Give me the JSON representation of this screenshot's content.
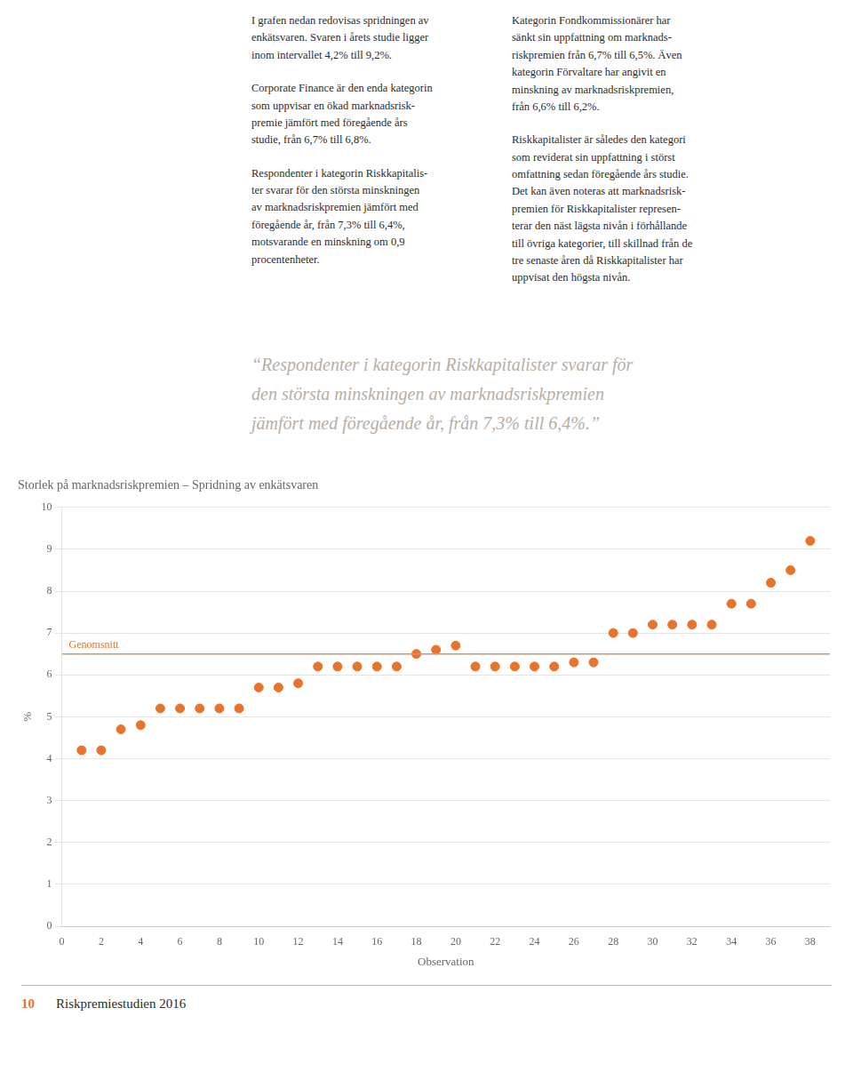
{
  "chart_data": {
    "type": "scatter",
    "title": "Storlek på marknadsriskpremien – Spridning av enkätsvaren",
    "xlabel": "Observation",
    "ylabel": "%",
    "x": [
      1,
      2,
      3,
      4,
      5,
      6,
      7,
      8,
      9,
      10,
      11,
      12,
      13,
      14,
      15,
      16,
      17,
      18,
      19,
      20,
      21,
      22,
      23,
      24,
      25,
      26,
      27,
      28,
      29,
      30,
      31,
      32,
      33,
      34,
      35,
      36,
      37,
      38
    ],
    "values": [
      4.2,
      4.2,
      4.7,
      4.8,
      5.2,
      5.2,
      5.2,
      5.2,
      5.2,
      5.7,
      5.7,
      5.8,
      6.2,
      6.2,
      6.2,
      6.2,
      6.2,
      6.5,
      6.6,
      6.7,
      6.2,
      6.2,
      6.2,
      6.2,
      6.2,
      6.3,
      6.3,
      7.0,
      7.0,
      7.2,
      7.2,
      7.2,
      7.2,
      7.7,
      7.7,
      8.2,
      8.5,
      9.2
    ],
    "color": "#E8732A",
    "xlim": [
      0,
      39
    ],
    "ylim": [
      0,
      10
    ],
    "xticks": [
      0,
      2,
      4,
      6,
      8,
      10,
      12,
      14,
      16,
      18,
      20,
      22,
      24,
      26,
      28,
      30,
      32,
      34,
      36,
      38
    ],
    "yticks": [
      0,
      1,
      2,
      3,
      4,
      5,
      6,
      7,
      8,
      9,
      10
    ],
    "grid": "y",
    "annotations": [
      {
        "type": "hline",
        "y": 6.5,
        "text": "Genomsnitt",
        "color": "#C49A78"
      }
    ]
  },
  "page": {
    "paragraphs_left": [
      "I grafen nedan redovisas spridningen av\nenkätsvaren. Svaren i årets studie ligger\ninom intervallet 4,2% till 9,2%.",
      "Corporate Finance är den enda kategorin\nsom uppvisar en ökad marknadsrisk-\npremie jämfört med föregående års\nstudie, från 6,7% till 6,8%.",
      "Respondenter i kategorin Riskkapitalis-\nter svarar för den största minskningen\nav marknadsriskpremien jämfört med\nföregående år, från 7,3% till 6,4%,\nmotsvarande en minskning om 0,9\nprocentenheter."
    ],
    "paragraphs_right": [
      "Kategorin Fondkommissionärer har\nsänkt sin uppfattning om marknads-\nriskpremien från 6,7% till 6,5%. Även\nkategorin Förvaltare har angivit en\nminskning av marknadsriskpremien,\nfrån 6,6% till 6,2%.",
      "Riskkapitalister är således den kategori\nsom reviderat sin uppfattning i störst\nomfattning sedan föregående års studie.\nDet kan även noteras att marknadsrisk-\npremien för Riskkapitalister represen-\nterar den näst lägsta nivån i förhållande\ntill övriga kategorier, till skillnad från de\ntre senaste åren då Riskkapitalister har\nuppvisat den högsta nivån."
    ],
    "quote": [
      "“Respondenter i kategorin Riskkapitalister svarar för",
      "den största minskningen av marknadsriskpremien",
      "jämfört med föregående år, från 7,3% till 6,4%.”"
    ],
    "footer_number": "10",
    "footer_text": "Riskpremiestudien 2016"
  }
}
